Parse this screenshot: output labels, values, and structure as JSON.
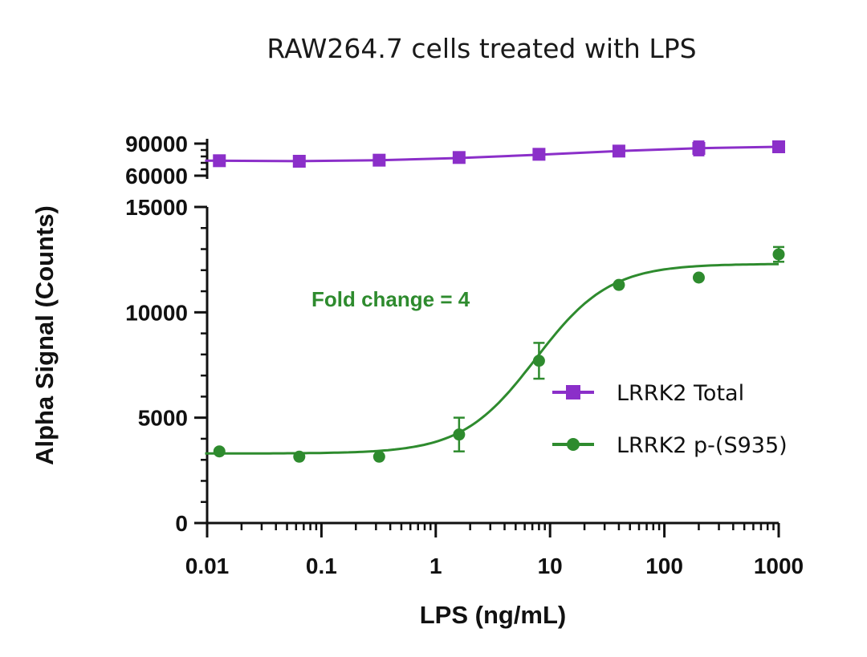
{
  "chart_data": {
    "type": "scatter",
    "title": "RAW264.7 cells treated with LPS",
    "xlabel": "LPS (ng/mL)",
    "ylabel": "Alpha Signal (Counts)",
    "x_scale": "log",
    "xlim": [
      0.01,
      1000
    ],
    "x_ticks": [
      0.01,
      0.1,
      1,
      10,
      100,
      1000
    ],
    "x_tick_labels": [
      "0.01",
      "0.1",
      "1",
      "10",
      "100",
      "1000"
    ],
    "y_axis_break": true,
    "y_lower": {
      "ylim": [
        0,
        15000
      ],
      "ticks": [
        0,
        5000,
        10000,
        15000
      ],
      "tick_labels": [
        "0",
        "5000",
        "10000",
        "15000"
      ]
    },
    "y_upper": {
      "ylim": [
        60000,
        90000
      ],
      "ticks": [
        60000,
        90000
      ],
      "tick_labels": [
        "60000",
        "90000"
      ]
    },
    "legend_position": "right-center",
    "annotation": {
      "text": "Fold change = 4",
      "color": "#2e8b2e"
    },
    "series": [
      {
        "name": "LRRK2 Total",
        "color": "#8b2fc9",
        "marker": "square",
        "axis": "upper",
        "x": [
          0.0128,
          0.064,
          0.32,
          1.6,
          8,
          40,
          200,
          1000
        ],
        "y": [
          74000,
          73500,
          74500,
          77000,
          80000,
          83000,
          85500,
          87000
        ],
        "yerr": [
          0,
          0,
          0,
          0,
          0,
          0,
          6500,
          0
        ],
        "fit": [
          74000,
          73600,
          74400,
          76500,
          79600,
          83000,
          85700,
          87000
        ]
      },
      {
        "name": "LRRK2 p-(S935)",
        "color": "#2e8b2e",
        "marker": "circle",
        "axis": "lower",
        "x": [
          0.0128,
          0.064,
          0.32,
          1.6,
          8,
          40,
          200,
          1000
        ],
        "y": [
          3400,
          3150,
          3150,
          4200,
          7700,
          11300,
          11650,
          12750
        ],
        "yerr": [
          0,
          0,
          0,
          800,
          850,
          0,
          0,
          350
        ],
        "fit_model": {
          "bottom": 3300,
          "top": 12300,
          "ec50": 7.5,
          "hill": 1.35
        }
      }
    ]
  }
}
